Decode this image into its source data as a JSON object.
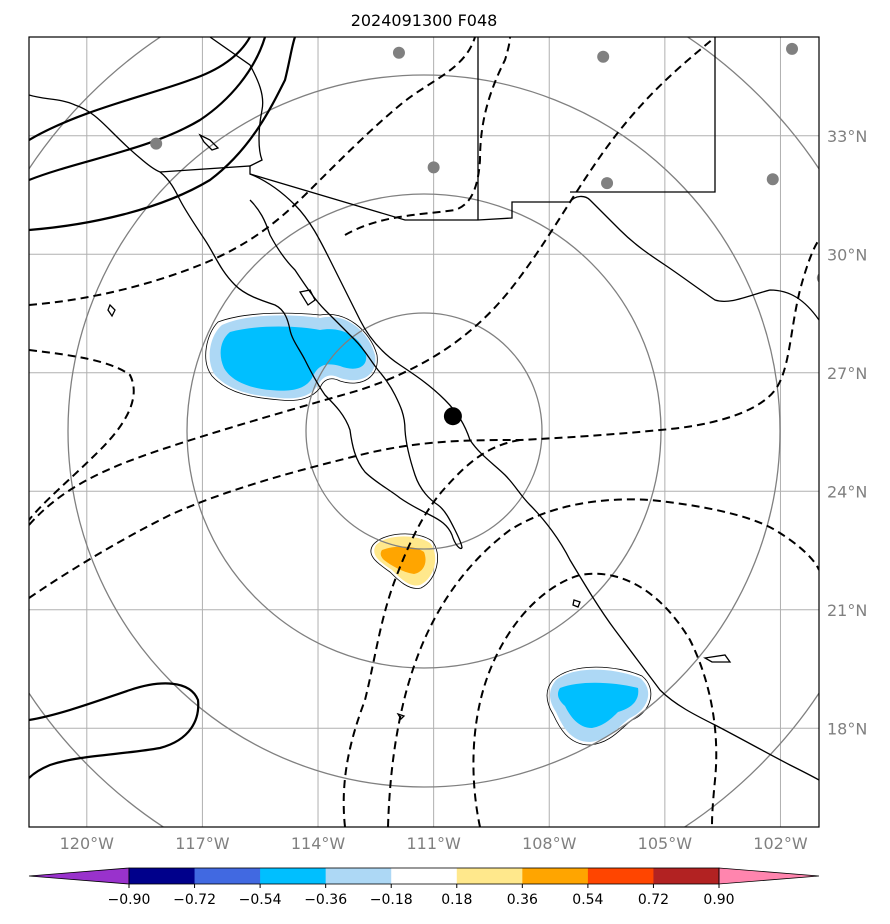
{
  "title": "2024091300 F048",
  "colors": {
    "grid": "#b0b0b0",
    "rings": "#808080",
    "coast": "#000000",
    "contour": "#000000",
    "station": "#808080",
    "center": "#000000",
    "tick_text": "#808080"
  },
  "map": {
    "lon_min": -121.5,
    "lon_max": -101.0,
    "lat_min": 15.5,
    "lat_max": 35.5,
    "center_marker": {
      "lon": -110.5,
      "lat": 25.9
    },
    "range_rings_deg": [
      3,
      6,
      9,
      12
    ],
    "stations": [
      {
        "lon": -111.9,
        "lat": 35.1
      },
      {
        "lon": -106.6,
        "lat": 35.0
      },
      {
        "lon": -101.7,
        "lat": 35.2
      },
      {
        "lon": -118.2,
        "lat": 32.8
      },
      {
        "lon": -111.0,
        "lat": 32.2
      },
      {
        "lon": -106.5,
        "lat": 31.8
      },
      {
        "lon": -102.2,
        "lat": 31.9
      },
      {
        "lon": -100.9,
        "lat": 29.4
      }
    ]
  },
  "chart_data": {
    "type": "map",
    "lon_ticks": [
      -120,
      -117,
      -114,
      -111,
      -108,
      -105,
      -102
    ],
    "lon_labels": [
      "120°W",
      "117°W",
      "114°W",
      "111°W",
      "108°W",
      "105°W",
      "102°W"
    ],
    "lat_ticks": [
      33,
      30,
      27,
      24,
      21,
      18
    ],
    "lat_labels": [
      "33°N",
      "30°N",
      "27°N",
      "24°N",
      "21°N",
      "18°N"
    ],
    "colorbar": {
      "levels": [
        -0.9,
        -0.72,
        -0.54,
        -0.36,
        -0.18,
        0.18,
        0.36,
        0.54,
        0.72,
        0.9
      ],
      "labels": [
        "−0.90",
        "−0.72",
        "−0.54",
        "−0.36",
        "−0.18",
        "0.18",
        "0.36",
        "0.54",
        "0.72",
        "0.90"
      ],
      "colors": [
        "#9932cc",
        "#00008b",
        "#4169e1",
        "#00bfff",
        "#add8f5",
        "#ffffff",
        "#ffe88c",
        "#ffa500",
        "#ff4500",
        "#b22222",
        "#ff85ae"
      ],
      "extend": "both"
    },
    "shaded_features": [
      {
        "name": "negative anomaly near 114W 27.5N",
        "sign": "negative"
      },
      {
        "name": "positive anomaly near 111W 22.9N",
        "sign": "positive"
      },
      {
        "name": "negative anomaly near 105.5W 19.1N",
        "sign": "negative"
      }
    ]
  }
}
